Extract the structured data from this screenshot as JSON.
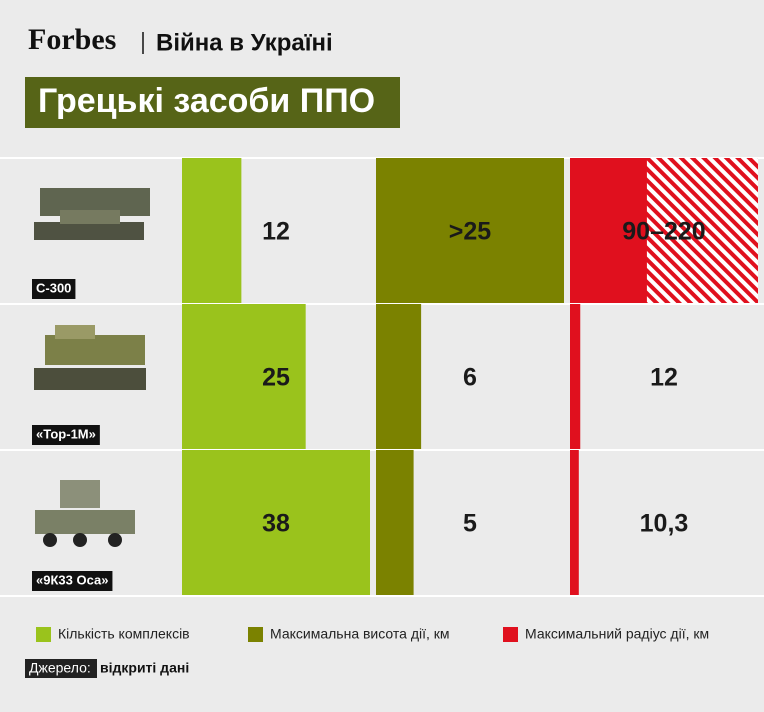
{
  "header": {
    "brand": "Forbes",
    "section": "Війна в Україні"
  },
  "chart_data": {
    "type": "bar",
    "title": "Грецькі засоби ППО",
    "categories": [
      "С-300",
      "«Тор-1М»",
      "«9К33 Оса»"
    ],
    "series": [
      {
        "name": "Кількість комплексів",
        "color": "#9ac31c",
        "values": [
          12,
          25,
          38
        ],
        "xlim": [
          0,
          38
        ]
      },
      {
        "name": "Максимальна висота дії, км",
        "color": "#7b8200",
        "values": [
          25,
          6,
          5
        ],
        "value_labels": [
          ">25",
          "6",
          "5"
        ],
        "xlim": [
          0,
          25
        ]
      },
      {
        "name": "Максимальний радіус дії, км",
        "color": "#e0101e",
        "values": [
          220,
          12,
          10.3
        ],
        "value_labels": [
          "90–220",
          "12",
          "10,3"
        ],
        "range_start": [
          90,
          null,
          null
        ],
        "xlim": [
          0,
          220
        ]
      }
    ]
  },
  "source": {
    "label": "Джерело:",
    "text": "відкриті дані"
  }
}
